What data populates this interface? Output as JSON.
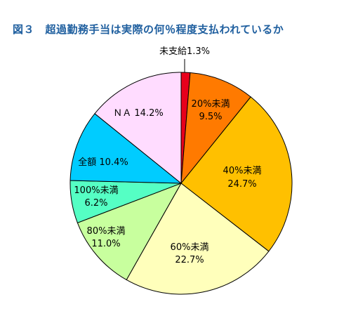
{
  "chart_data": {
    "type": "pie",
    "title": "図３　超過勤務手当は実際の何％程度支払われているか",
    "start": "12 o'clock, clockwise",
    "slices": [
      {
        "label": "未支給",
        "value": 1.3,
        "value_label": "1.3%",
        "color": "#e8001c"
      },
      {
        "label": "20%未満",
        "value": 9.5,
        "value_label": "9.5%",
        "color": "#ff7a00"
      },
      {
        "label": "40%未満",
        "value": 24.7,
        "value_label": "24.7%",
        "color": "#ffc000"
      },
      {
        "label": "60%未満",
        "value": 22.7,
        "value_label": "22.7%",
        "color": "#ffffbb"
      },
      {
        "label": "80%未満",
        "value": 11.0,
        "value_label": "11.0%",
        "color": "#c8ff9e"
      },
      {
        "label": "100%未満",
        "value": 6.2,
        "value_label": "6.2%",
        "color": "#55ffc4"
      },
      {
        "label": "全額",
        "value": 10.4,
        "value_label": "10.4%",
        "color": "#00ccff"
      },
      {
        "label": "ＮＡ",
        "value": 14.2,
        "value_label": "14.2%",
        "color": "#ffdcff"
      }
    ],
    "label_display": [
      "未支給1.3%",
      "20%未満",
      "9.5%",
      "40%未満",
      "24.7%",
      "60%未満",
      "22.7%",
      "80%未満",
      "11.0%",
      "100%未満",
      "6.2%",
      "全額 10.4%",
      "ＮＡ 14.2%"
    ],
    "border_color": "#000000"
  }
}
